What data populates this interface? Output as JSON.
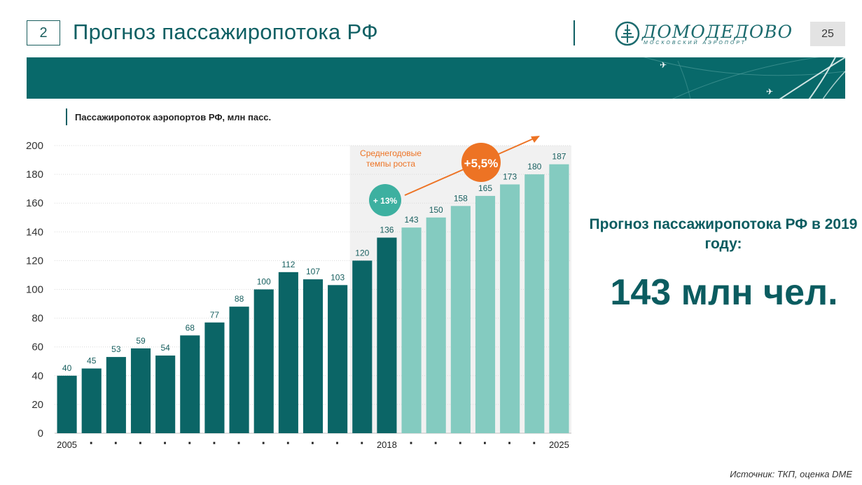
{
  "header": {
    "slide_number": "2",
    "title": "Прогноз пассажиропотока РФ",
    "page_number": "25"
  },
  "logo": {
    "wordmark": "ДОМОДЕДОВО",
    "subtitle": "МОСКОВСКИЙ АЭРОПОРТ"
  },
  "chart_title": "Пассажиропоток аэропортов РФ, млн пасс.",
  "chart_data": {
    "type": "bar",
    "categories": [
      "2005",
      "·",
      "·",
      "·",
      "·",
      "·",
      "·",
      "·",
      "·",
      "·",
      "·",
      "·",
      "·",
      "2018",
      "·",
      "·",
      "·",
      "·",
      "·",
      "·",
      "2025"
    ],
    "values": [
      40,
      45,
      53,
      59,
      54,
      68,
      77,
      88,
      100,
      112,
      107,
      103,
      120,
      136,
      143,
      150,
      158,
      165,
      173,
      180,
      187
    ],
    "value_labels": [
      "40",
      "45",
      "53",
      "59",
      "54",
      "68",
      "77",
      "88",
      "100",
      "112",
      "107",
      "103",
      "120",
      "136",
      "143",
      "150",
      "158",
      "165",
      "173",
      "180",
      "187"
    ],
    "ylim": [
      0,
      200
    ],
    "yticks": [
      "0",
      "20",
      "40",
      "60",
      "80",
      "100",
      "120",
      "140",
      "160",
      "180",
      "200"
    ],
    "grid": true,
    "colors": {
      "historical": "#0b6566",
      "forecast": "#84cbc0",
      "cagr_hist": "#3db0a0",
      "cagr_fcst": "#ed7324"
    },
    "annotations": {
      "cagr_caption": "Среднегодовые темпы роста",
      "cagr_historical": "+ 13%",
      "cagr_forecast": "+5,5%"
    }
  },
  "forecast": {
    "heading": "Прогноз пассажиропотока РФ в 2019 году:",
    "value": "143 млн чел."
  },
  "source": "Источник: ТКП, оценка DME"
}
